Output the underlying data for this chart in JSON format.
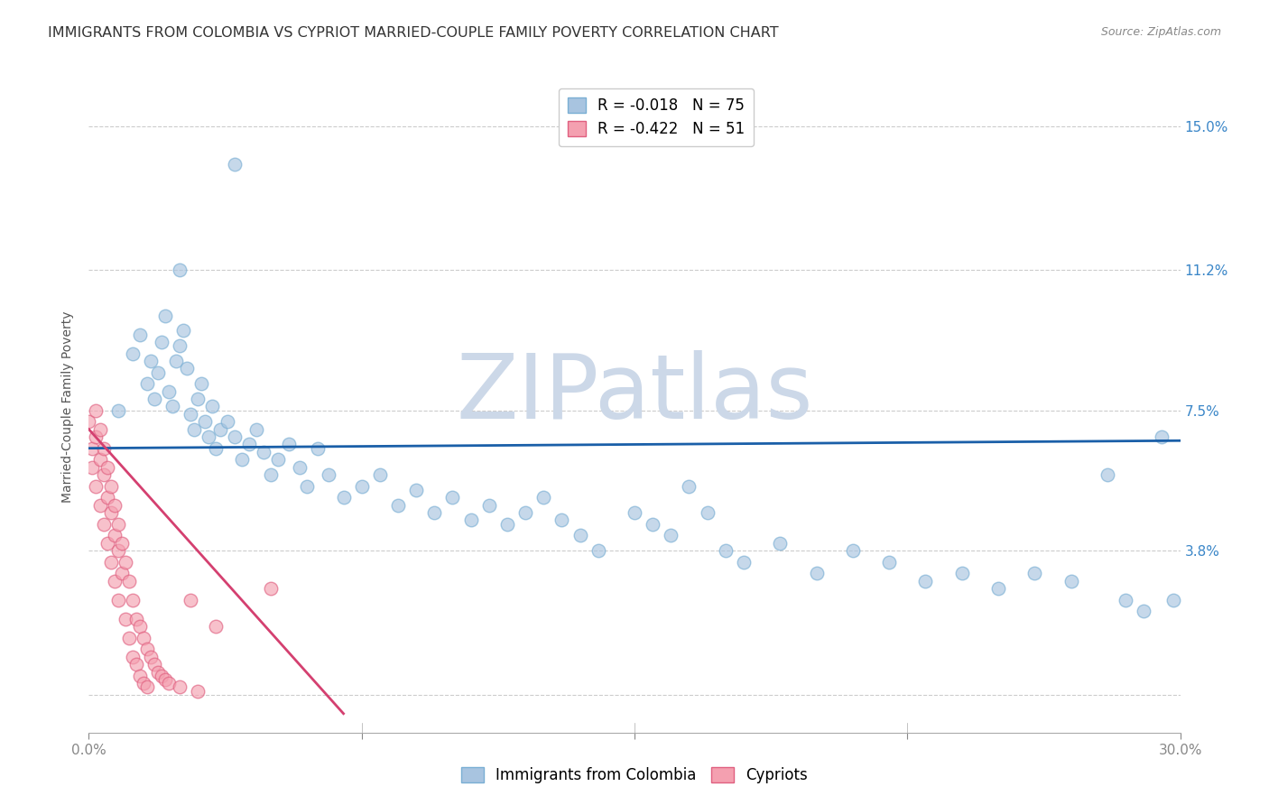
{
  "title": "IMMIGRANTS FROM COLOMBIA VS CYPRIOT MARRIED-COUPLE FAMILY POVERTY CORRELATION CHART",
  "source": "Source: ZipAtlas.com",
  "ylabel": "Married-Couple Family Poverty",
  "xmin": 0.0,
  "xmax": 0.3,
  "ymin": -0.01,
  "ymax": 0.162,
  "legend_blue_label": "Immigrants from Colombia",
  "legend_pink_label": "Cypriots",
  "legend_R_blue": "R = -0.018",
  "legend_N_blue": "N = 75",
  "legend_R_pink": "R = -0.422",
  "legend_N_pink": "N = 51",
  "watermark": "ZIPatlas",
  "blue_scatter_x": [
    0.008,
    0.012,
    0.014,
    0.016,
    0.017,
    0.018,
    0.019,
    0.02,
    0.021,
    0.022,
    0.023,
    0.024,
    0.025,
    0.026,
    0.027,
    0.028,
    0.029,
    0.03,
    0.031,
    0.032,
    0.033,
    0.034,
    0.035,
    0.036,
    0.038,
    0.04,
    0.042,
    0.044,
    0.046,
    0.048,
    0.05,
    0.052,
    0.055,
    0.058,
    0.06,
    0.063,
    0.066,
    0.07,
    0.075,
    0.08,
    0.085,
    0.09,
    0.095,
    0.1,
    0.105,
    0.11,
    0.115,
    0.12,
    0.125,
    0.13,
    0.135,
    0.14,
    0.15,
    0.155,
    0.16,
    0.165,
    0.17,
    0.175,
    0.18,
    0.19,
    0.2,
    0.21,
    0.22,
    0.23,
    0.24,
    0.25,
    0.26,
    0.27,
    0.28,
    0.285,
    0.29,
    0.295,
    0.298,
    0.025,
    0.04
  ],
  "blue_scatter_y": [
    0.075,
    0.09,
    0.095,
    0.082,
    0.088,
    0.078,
    0.085,
    0.093,
    0.1,
    0.08,
    0.076,
    0.088,
    0.092,
    0.096,
    0.086,
    0.074,
    0.07,
    0.078,
    0.082,
    0.072,
    0.068,
    0.076,
    0.065,
    0.07,
    0.072,
    0.068,
    0.062,
    0.066,
    0.07,
    0.064,
    0.058,
    0.062,
    0.066,
    0.06,
    0.055,
    0.065,
    0.058,
    0.052,
    0.055,
    0.058,
    0.05,
    0.054,
    0.048,
    0.052,
    0.046,
    0.05,
    0.045,
    0.048,
    0.052,
    0.046,
    0.042,
    0.038,
    0.048,
    0.045,
    0.042,
    0.055,
    0.048,
    0.038,
    0.035,
    0.04,
    0.032,
    0.038,
    0.035,
    0.03,
    0.032,
    0.028,
    0.032,
    0.03,
    0.058,
    0.025,
    0.022,
    0.068,
    0.025,
    0.112,
    0.14
  ],
  "pink_scatter_x": [
    0.0,
    0.001,
    0.001,
    0.002,
    0.002,
    0.002,
    0.003,
    0.003,
    0.003,
    0.004,
    0.004,
    0.004,
    0.005,
    0.005,
    0.005,
    0.006,
    0.006,
    0.006,
    0.007,
    0.007,
    0.007,
    0.008,
    0.008,
    0.008,
    0.009,
    0.009,
    0.01,
    0.01,
    0.011,
    0.011,
    0.012,
    0.012,
    0.013,
    0.013,
    0.014,
    0.014,
    0.015,
    0.015,
    0.016,
    0.016,
    0.017,
    0.018,
    0.019,
    0.02,
    0.021,
    0.022,
    0.025,
    0.028,
    0.03,
    0.035,
    0.05
  ],
  "pink_scatter_y": [
    0.072,
    0.065,
    0.06,
    0.075,
    0.068,
    0.055,
    0.07,
    0.062,
    0.05,
    0.065,
    0.058,
    0.045,
    0.06,
    0.052,
    0.04,
    0.055,
    0.048,
    0.035,
    0.05,
    0.042,
    0.03,
    0.045,
    0.038,
    0.025,
    0.04,
    0.032,
    0.035,
    0.02,
    0.03,
    0.015,
    0.025,
    0.01,
    0.02,
    0.008,
    0.018,
    0.005,
    0.015,
    0.003,
    0.012,
    0.002,
    0.01,
    0.008,
    0.006,
    0.005,
    0.004,
    0.003,
    0.002,
    0.025,
    0.001,
    0.018,
    0.028
  ],
  "blue_line_x": [
    0.0,
    0.3
  ],
  "blue_line_y": [
    0.065,
    0.067
  ],
  "pink_line_x": [
    0.0,
    0.07
  ],
  "pink_line_y": [
    0.07,
    -0.005
  ],
  "blue_color": "#a8c4e0",
  "blue_edge_color": "#7aafd4",
  "pink_color": "#f4a0b0",
  "pink_edge_color": "#e06080",
  "blue_line_color": "#1a5fa8",
  "pink_line_color": "#d44070",
  "scatter_size": 110,
  "scatter_alpha": 0.65,
  "background_color": "#ffffff",
  "grid_color": "#cccccc",
  "title_fontsize": 11.5,
  "axis_label_fontsize": 10,
  "tick_fontsize": 11,
  "watermark_color": "#ccd8e8",
  "watermark_fontsize": 72
}
